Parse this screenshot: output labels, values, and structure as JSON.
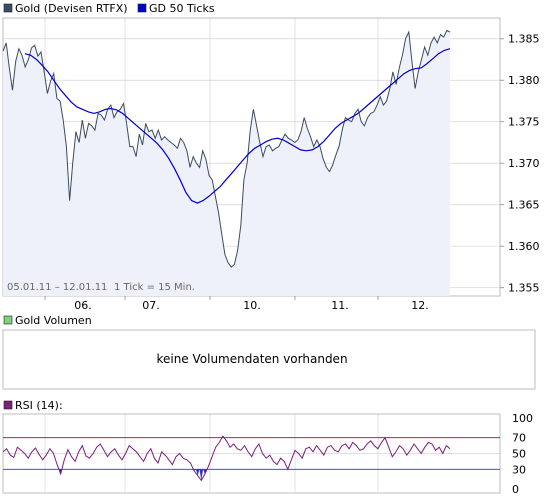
{
  "colors": {
    "gold_line": "#3b4b63",
    "ma_line": "#0000cc",
    "area_fill": "#eef1fa",
    "volume_swatch": "#7fd07f",
    "rsi_line": "#7b1f7b",
    "rsi_upper": "#cc0000",
    "rsi_lower": "#3333cc",
    "grid": "#c8c8c8",
    "frame": "#bdbdbd"
  },
  "price_panel": {
    "legend": [
      {
        "label": "Gold (Devisen RTFX)",
        "color": "#3b4b63"
      },
      {
        "label": "GD 50 Ticks",
        "color": "#0000cc"
      }
    ],
    "range_note": "05.01.11 – 12.01.11",
    "tick_note": "1 Tick = 15 Min."
  },
  "volume_panel": {
    "legend": {
      "label": "Gold Volumen",
      "color": "#7fd07f"
    },
    "message": "keine Volumendaten vorhanden"
  },
  "rsi_panel": {
    "legend": {
      "label": "RSI (14):",
      "color": "#7b1f7b"
    }
  },
  "chart_data": [
    {
      "type": "line",
      "title": "",
      "xlabel": "",
      "ylabel": "",
      "x_ticks": [
        "06.",
        "07.",
        "10.",
        "11.",
        "12."
      ],
      "y_ticks": [
        1.355,
        1.36,
        1.365,
        1.37,
        1.375,
        1.38,
        1.385
      ],
      "ylim": [
        1.354,
        1.3875
      ],
      "grid": true,
      "legend_position": "top-left",
      "series": [
        {
          "name": "Gold (Devisen RTFX)",
          "values": [
            1.3835,
            1.3845,
            1.3815,
            1.3788,
            1.3823,
            1.3838,
            1.383,
            1.3816,
            1.3825,
            1.3839,
            1.3842,
            1.3829,
            1.3834,
            1.381,
            1.3784,
            1.3799,
            1.3808,
            1.3778,
            1.3775,
            1.3752,
            1.372,
            1.3655,
            1.37,
            1.3738,
            1.3725,
            1.3752,
            1.373,
            1.3748,
            1.3745,
            1.374,
            1.376,
            1.3758,
            1.3752,
            1.3765,
            1.377,
            1.3755,
            1.3762,
            1.3765,
            1.3772,
            1.3748,
            1.372,
            1.372,
            1.3708,
            1.3735,
            1.3722,
            1.3748,
            1.3738,
            1.374,
            1.373,
            1.374,
            1.3728,
            1.3732,
            1.3728,
            1.3725,
            1.3722,
            1.3718,
            1.373,
            1.3725,
            1.3715,
            1.3695,
            1.3708,
            1.37,
            1.3695,
            1.3715,
            1.3705,
            1.3685,
            1.368,
            1.366,
            1.364,
            1.3615,
            1.359,
            1.358,
            1.3575,
            1.3578,
            1.3595,
            1.3625,
            1.368,
            1.37,
            1.374,
            1.3765,
            1.3745,
            1.3725,
            1.3708,
            1.372,
            1.3722,
            1.3715,
            1.3718,
            1.372,
            1.3728,
            1.3735,
            1.373,
            1.3728,
            1.3725,
            1.3728,
            1.3738,
            1.3755,
            1.3742,
            1.3732,
            1.372,
            1.3728,
            1.372,
            1.3705,
            1.3695,
            1.369,
            1.3698,
            1.371,
            1.372,
            1.374,
            1.3755,
            1.3752,
            1.375,
            1.376,
            1.3765,
            1.375,
            1.3745,
            1.3755,
            1.376,
            1.3762,
            1.377,
            1.378,
            1.377,
            1.3775,
            1.379,
            1.381,
            1.3795,
            1.3815,
            1.383,
            1.385,
            1.3858,
            1.3822,
            1.379,
            1.381,
            1.3825,
            1.384,
            1.383,
            1.3845,
            1.3852,
            1.3845,
            1.3855,
            1.3852,
            1.386,
            1.3858
          ]
        },
        {
          "name": "GD 50 Ticks",
          "values": [
            1.3832,
            1.383,
            1.3825,
            1.3818,
            1.381,
            1.38,
            1.379,
            1.3782,
            1.3774,
            1.3768,
            1.3765,
            1.3762,
            1.376,
            1.3762,
            1.3765,
            1.3766,
            1.3764,
            1.376,
            1.3754,
            1.3748,
            1.3742,
            1.3736,
            1.373,
            1.3724,
            1.3716,
            1.3706,
            1.3694,
            1.368,
            1.3665,
            1.3655,
            1.3652,
            1.3655,
            1.366,
            1.3666,
            1.3672,
            1.368,
            1.3688,
            1.3696,
            1.3704,
            1.3712,
            1.3718,
            1.3722,
            1.3726,
            1.3729,
            1.373,
            1.3728,
            1.3724,
            1.372,
            1.3716,
            1.3715,
            1.3716,
            1.372,
            1.3726,
            1.3734,
            1.3742,
            1.3748,
            1.3752,
            1.3756,
            1.376,
            1.3766,
            1.3772,
            1.3778,
            1.3784,
            1.379,
            1.3796,
            1.3802,
            1.3808,
            1.3812,
            1.3814,
            1.3815,
            1.382,
            1.3826,
            1.3832,
            1.3836,
            1.3838
          ]
        }
      ]
    },
    {
      "type": "line",
      "title": "",
      "xlabel": "",
      "ylabel": "",
      "y_ticks": [
        0,
        30,
        50,
        70,
        100
      ],
      "ylim": [
        0,
        100
      ],
      "reference_lines": [
        30,
        70
      ],
      "grid": true,
      "series": [
        {
          "name": "RSI (14):",
          "values": [
            52,
            56,
            48,
            45,
            58,
            54,
            50,
            44,
            52,
            57,
            49,
            42,
            48,
            56,
            50,
            36,
            24,
            42,
            55,
            46,
            40,
            52,
            60,
            47,
            44,
            50,
            58,
            62,
            54,
            46,
            52,
            56,
            48,
            42,
            50,
            60,
            56,
            52,
            46,
            40,
            50,
            56,
            44,
            38,
            52,
            48,
            42,
            36,
            46,
            50,
            44,
            42,
            38,
            28,
            22,
            16,
            24,
            34,
            46,
            58,
            64,
            72,
            66,
            58,
            62,
            56,
            54,
            60,
            52,
            46,
            56,
            62,
            50,
            44,
            48,
            40,
            36,
            44,
            40,
            30,
            42,
            54,
            50,
            44,
            56,
            58,
            52,
            60,
            54,
            48,
            58,
            60,
            54,
            52,
            60,
            62,
            56,
            64,
            60,
            54,
            56,
            62,
            66,
            60,
            56,
            64,
            70,
            58,
            46,
            52,
            60,
            56,
            48,
            54,
            62,
            56,
            50,
            58,
            64,
            62,
            54,
            58,
            50,
            60,
            56
          ]
        }
      ]
    }
  ]
}
